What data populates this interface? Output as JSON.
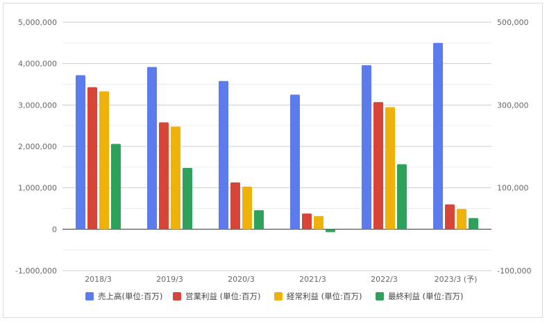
{
  "chart_data": {
    "type": "bar",
    "categories": [
      "2018/3",
      "2019/3",
      "2020/3",
      "2021/3",
      "2022/3",
      "2023/3 (予)"
    ],
    "series": [
      {
        "name": "売上高(単位:百万)",
        "axis": "left",
        "color": "#5b7bef",
        "values": [
          3720000,
          3920000,
          3580000,
          3250000,
          3960000,
          4500000
        ]
      },
      {
        "name": "営業利益 (単位:百万)",
        "axis": "right",
        "color": "#d64537",
        "values": [
          343000,
          258000,
          113000,
          38000,
          307000,
          60000
        ]
      },
      {
        "name": "経常利益 (単位:百万)",
        "axis": "right",
        "color": "#eeb20a",
        "values": [
          333000,
          248000,
          103000,
          32000,
          295000,
          49000
        ]
      },
      {
        "name": "最終利益 (単位:百万)",
        "axis": "right",
        "color": "#2ea15b",
        "values": [
          206000,
          148000,
          46000,
          -7000,
          157000,
          27000
        ]
      }
    ],
    "y_left": {
      "ylim": [
        -1000000,
        5000000
      ],
      "tick_labels": [
        "5,000,000",
        "4,000,000",
        "3,000,000",
        "2,000,000",
        "1,000,000",
        "0",
        "-1,000,000"
      ]
    },
    "y_right": {
      "ylim": [
        -100000,
        500000
      ],
      "tick_labels": [
        "500,000",
        "300,000",
        "100,000",
        "-100,000"
      ]
    },
    "grid": true,
    "legend_position": "bottom"
  }
}
